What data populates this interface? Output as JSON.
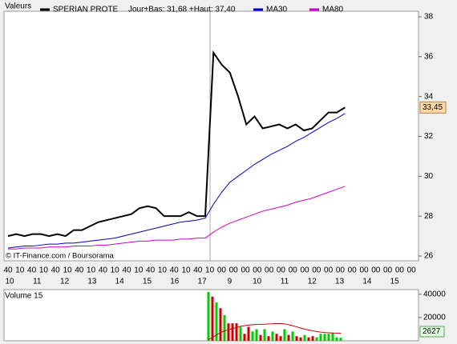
{
  "chart_data": [
    {
      "type": "line",
      "title": "Valeurs",
      "subtitle": "Jour+Bas: 31,68 +Haut: 37,40",
      "annotation": "© IT-Finance.com / Boursorama",
      "series": [
        {
          "name": "SPERIAN PROTE",
          "color": "#000000",
          "values": [
            27.0,
            27.1,
            27.0,
            27.1,
            27.1,
            27.0,
            27.1,
            27.0,
            27.3,
            27.3,
            27.5,
            27.7,
            27.8,
            27.9,
            28.0,
            28.1,
            28.4,
            28.5,
            28.4,
            28.0,
            28.0,
            28.0,
            28.2,
            28.0,
            28.0,
            36.2,
            35.6,
            35.2,
            34.0,
            32.6,
            33.0,
            32.4,
            32.5,
            32.6,
            32.4,
            32.6,
            32.3,
            32.4,
            32.8,
            33.2,
            33.2,
            33.45
          ]
        },
        {
          "name": "MA30",
          "color": "#0000cc",
          "values": [
            26.4,
            26.45,
            26.5,
            26.5,
            26.55,
            26.6,
            26.6,
            26.65,
            26.65,
            26.7,
            26.75,
            26.8,
            26.85,
            26.9,
            27.0,
            27.1,
            27.2,
            27.3,
            27.4,
            27.5,
            27.6,
            27.7,
            27.75,
            27.8,
            27.9,
            28.6,
            29.2,
            29.7,
            30.0,
            30.3,
            30.6,
            30.85,
            31.1,
            31.3,
            31.5,
            31.75,
            31.95,
            32.2,
            32.45,
            32.7,
            32.9,
            33.15
          ]
        },
        {
          "name": "MA80",
          "color": "#cc00cc",
          "values": [
            26.35,
            26.35,
            26.4,
            26.4,
            26.4,
            26.45,
            26.45,
            26.45,
            26.5,
            26.5,
            26.5,
            26.55,
            26.55,
            26.6,
            26.65,
            26.7,
            26.75,
            26.75,
            26.8,
            26.8,
            26.8,
            26.85,
            26.85,
            26.9,
            26.9,
            27.2,
            27.45,
            27.65,
            27.8,
            27.95,
            28.1,
            28.25,
            28.35,
            28.45,
            28.55,
            28.7,
            28.8,
            28.9,
            29.05,
            29.2,
            29.35,
            29.5
          ]
        }
      ],
      "last_value": 33.45,
      "last_value_label": "33,45",
      "ylim": [
        25.76,
        38.28
      ],
      "yticks": [
        26,
        28,
        30,
        32,
        34,
        36,
        38
      ],
      "x_minute_labels": [
        "40",
        "10",
        "40",
        "10",
        "40",
        "10",
        "40",
        "10",
        "40",
        "10",
        "40",
        "10",
        "40",
        "10",
        "40",
        "10",
        "40",
        "10",
        "00",
        "00",
        "00",
        "00",
        "00",
        "00",
        "00",
        "00",
        "00",
        "00",
        "00",
        "00",
        "00",
        "00",
        "00",
        "00",
        "00"
      ],
      "x_hour_labels": [
        "10",
        "11",
        "12",
        "13",
        "14",
        "15",
        "16",
        "17",
        "9",
        "10",
        "11",
        "12",
        "13",
        "14",
        "15"
      ]
    },
    {
      "type": "bar",
      "title": "Volume 15",
      "values": [
        42000,
        38000,
        33000,
        28000,
        22000,
        15000,
        15000,
        15000,
        12000,
        6000,
        12000,
        8000,
        10000,
        5000,
        10000,
        4000,
        8000,
        6000,
        4000,
        10000,
        5000,
        8000,
        4000,
        3000,
        5000,
        3000,
        4000,
        3000,
        6000,
        6000,
        6000,
        7000,
        3000,
        2627
      ],
      "colors": [
        "#00cc00",
        "#cc0000",
        "#00cc00",
        "#cc0000",
        "#00cc00",
        "#cc0000",
        "#cc0000",
        "#cc0000",
        "#00cc00",
        "#cc0000",
        "#cc0000",
        "#00cc00",
        "#00cc00",
        "#cc0000",
        "#00cc00",
        "#cc0000",
        "#00cc00",
        "#cc0000",
        "#cc0000",
        "#00cc00",
        "#cc0000",
        "#00cc00",
        "#cc0000",
        "#cc0000",
        "#00cc00",
        "#cc0000",
        "#cc0000",
        "#00cc00",
        "#00cc00",
        "#00cc00",
        "#00cc00",
        "#00cc00",
        "#00cc00",
        "#00cc00"
      ],
      "average": {
        "color": "#cc0000",
        "values": [
          1000,
          3000,
          5000,
          7000,
          8500,
          9500,
          10500,
          11500,
          12500,
          13000,
          13500,
          13800,
          14000,
          14200,
          14300,
          14500,
          14600,
          14800,
          14800,
          14500,
          13800,
          13000,
          12000,
          11000,
          10000,
          9300,
          8600,
          8000,
          7500,
          7100,
          6900,
          6700,
          6600,
          6500
        ]
      },
      "ylim": [
        0,
        44000
      ],
      "yticks": [
        20000,
        40000
      ]
    }
  ]
}
